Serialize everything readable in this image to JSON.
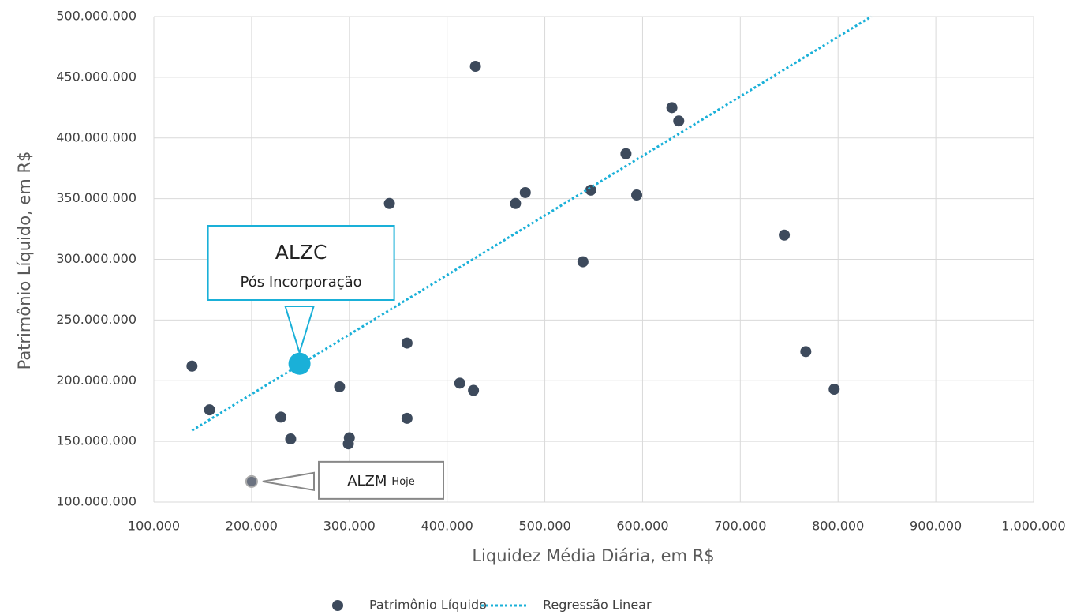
{
  "chart_data": {
    "type": "scatter",
    "xlabel": "Liquidez Média Diária, em R$",
    "ylabel": "Patrimônio Líquido, em R$",
    "xlim": [
      100000,
      1000000
    ],
    "xticks": [
      {
        "value": 100000,
        "label": "100.000"
      },
      {
        "value": 200000,
        "label": "200.000"
      },
      {
        "value": 300000,
        "label": "300.000"
      },
      {
        "value": 400000,
        "label": "400.000"
      },
      {
        "value": 500000,
        "label": "500.000"
      },
      {
        "value": 600000,
        "label": "600.000"
      },
      {
        "value": 700000,
        "label": "700.000"
      },
      {
        "value": 800000,
        "label": "800.000"
      },
      {
        "value": 900000,
        "label": "900.000"
      },
      {
        "value": 1000000,
        "label": "1.000.000"
      }
    ],
    "ylim": [
      100000000,
      500000000
    ],
    "yticks": [
      {
        "value": 100000000,
        "label": "100.000.000"
      },
      {
        "value": 150000000,
        "label": "150.000.000"
      },
      {
        "value": 200000000,
        "label": "200.000.000"
      },
      {
        "value": 250000000,
        "label": "250.000.000"
      },
      {
        "value": 300000000,
        "label": "300.000.000"
      },
      {
        "value": 350000000,
        "label": "350.000.000"
      },
      {
        "value": 400000000,
        "label": "400.000.000"
      },
      {
        "value": 450000000,
        "label": "450.000.000"
      },
      {
        "value": 500000000,
        "label": "500.000.000"
      }
    ],
    "grid": true,
    "series": [
      {
        "name": "Patrimônio Líquido",
        "color": "#3d4a5c",
        "x": [
          139000,
          157000,
          230000,
          240000,
          290000,
          300000,
          299000,
          341000,
          359000,
          359000,
          413000,
          427000,
          429000,
          470000,
          480000,
          539000,
          547000,
          583000,
          594000,
          630000,
          637000,
          745000,
          767000,
          796000
        ],
        "values": [
          212000000,
          176000000,
          170000000,
          152000000,
          195000000,
          153000000,
          148000000,
          346000000,
          231000000,
          169000000,
          198000000,
          192000000,
          459000000,
          346000000,
          355000000,
          298000000,
          357000000,
          387000000,
          353000000,
          425000000,
          414000000,
          320000000,
          224000000,
          193000000
        ]
      },
      {
        "name": "Regressão Linear",
        "type": "line",
        "color": "#1ab0d8",
        "x": [
          139000,
          834000
        ],
        "values": [
          159000000,
          500000000
        ]
      }
    ],
    "annotations": [
      {
        "text": "ALZC",
        "subtext": "Pós Incorporação",
        "x": 249000,
        "y": 214000000,
        "color": "#1ab0d8"
      },
      {
        "text": "ALZM",
        "subtext": "Hoje",
        "x": 200000,
        "y": 117000000,
        "color": "#6b7280"
      }
    ]
  }
}
